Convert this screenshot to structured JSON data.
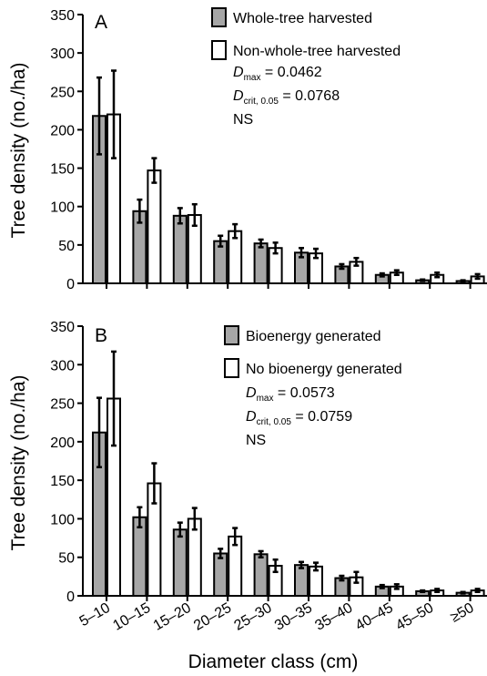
{
  "figure": {
    "xlabel": "Diameter class (cm)",
    "categories": [
      "5–10",
      "10–15",
      "15–20",
      "20–25",
      "25–30",
      "30–35",
      "35–40",
      "40–45",
      "45–50",
      "≥50"
    ]
  },
  "chart_data": [
    {
      "type": "bar",
      "panel_label": "A",
      "ylabel": "Tree density (no./ha)",
      "ylim": [
        0,
        350
      ],
      "yticks": [
        0,
        50,
        100,
        150,
        200,
        250,
        300,
        350
      ],
      "categories": [
        "5–10",
        "10–15",
        "15–20",
        "20–25",
        "25–30",
        "30–35",
        "35–40",
        "40–45",
        "45–50",
        "≥50"
      ],
      "series": [
        {
          "name": "Whole-tree harvested",
          "color": "#a6a6a6",
          "values": [
            218,
            94,
            88,
            55,
            52,
            40,
            22,
            11,
            4,
            3
          ],
          "errors": [
            50,
            15,
            10,
            7,
            5,
            6,
            3,
            2,
            1,
            1
          ]
        },
        {
          "name": "Non-whole-tree harvested",
          "color": "#ffffff",
          "values": [
            220,
            147,
            89,
            68,
            46,
            39,
            28,
            14,
            11,
            9
          ],
          "errors": [
            57,
            16,
            14,
            9,
            7,
            6,
            5,
            3,
            3,
            3
          ]
        }
      ],
      "stats": {
        "dmax_symbol": "D",
        "dmax_sub": "max",
        "dmax_value": " = 0.0462",
        "dcrit_symbol": "D",
        "dcrit_sub": "crit, 0.05",
        "dcrit_value": " = 0.0768",
        "significance": "NS"
      },
      "legend_position": "top-right",
      "grid": false
    },
    {
      "type": "bar",
      "panel_label": "B",
      "ylabel": "Tree density (no./ha)",
      "ylim": [
        0,
        350
      ],
      "yticks": [
        0,
        50,
        100,
        150,
        200,
        250,
        300,
        350
      ],
      "categories": [
        "5–10",
        "10–15",
        "15–20",
        "20–25",
        "25–30",
        "30–35",
        "35–40",
        "40–45",
        "45–50",
        "≥50"
      ],
      "series": [
        {
          "name": "Bioenergy generated",
          "color": "#a6a6a6",
          "values": [
            212,
            102,
            86,
            55,
            54,
            40,
            23,
            12,
            6,
            4
          ],
          "errors": [
            45,
            13,
            9,
            6,
            4,
            4,
            3,
            2,
            1,
            1
          ]
        },
        {
          "name": "No bioenergy generated",
          "color": "#ffffff",
          "values": [
            256,
            146,
            100,
            77,
            39,
            38,
            24,
            12,
            7,
            7
          ],
          "errors": [
            61,
            26,
            14,
            11,
            8,
            5,
            7,
            3,
            2,
            2
          ]
        }
      ],
      "stats": {
        "dmax_symbol": "D",
        "dmax_sub": "max",
        "dmax_value": " = 0.0573",
        "dcrit_symbol": "D",
        "dcrit_sub": "crit, 0.05",
        "dcrit_value": " = 0.0759",
        "significance": "NS"
      },
      "legend_position": "top-right",
      "grid": false
    }
  ]
}
